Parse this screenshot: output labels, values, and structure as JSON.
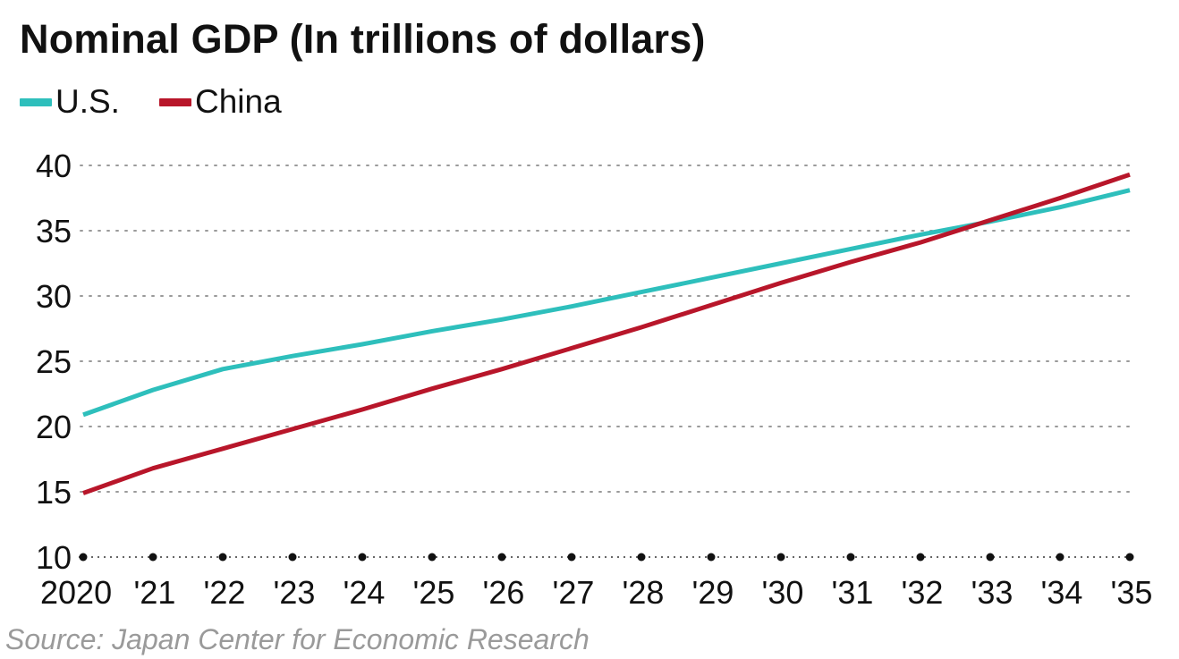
{
  "chart_data": {
    "type": "line",
    "title": "Nominal GDP (In trillions of dollars)",
    "categories": [
      "2020",
      "'21",
      "'22",
      "'23",
      "'24",
      "'25",
      "'26",
      "'27",
      "'28",
      "'29",
      "'30",
      "'31",
      "'32",
      "'33",
      "'34",
      "'35"
    ],
    "series": [
      {
        "name": "U.S.",
        "color": "#2ebfbc",
        "values": [
          20.9,
          22.8,
          24.4,
          25.4,
          26.3,
          27.3,
          28.2,
          29.2,
          30.3,
          31.4,
          32.5,
          33.6,
          34.7,
          35.7,
          36.8,
          38.1
        ]
      },
      {
        "name": "China",
        "color": "#b8162a",
        "values": [
          14.9,
          16.8,
          18.3,
          19.8,
          21.3,
          22.9,
          24.4,
          26.0,
          27.6,
          29.3,
          31.0,
          32.6,
          34.1,
          35.8,
          37.5,
          39.3
        ]
      }
    ],
    "yticks": [
      10,
      15,
      20,
      25,
      30,
      35,
      40
    ],
    "ylim": [
      10,
      40
    ],
    "xlabel": "",
    "ylabel": "",
    "grid": true,
    "legend_position": "top-left",
    "source": "Source: Japan Center for Economic Research"
  }
}
